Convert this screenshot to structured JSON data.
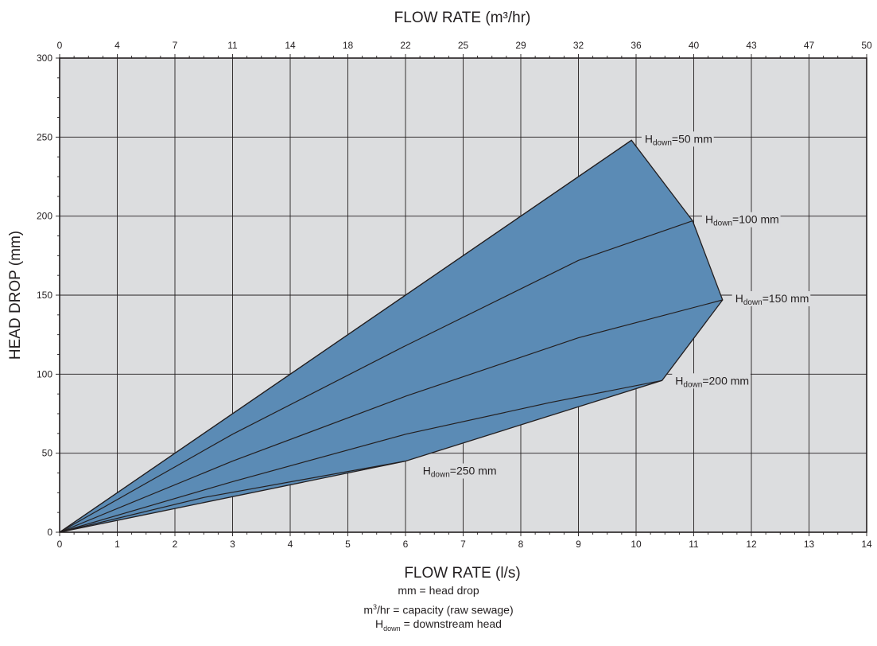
{
  "chart_data": {
    "type": "area",
    "title": "",
    "xlabel": "FLOW RATE (l/s)",
    "ylabel": "HEAD DROP (mm)",
    "top_xlabel": "FLOW RATE (m³/hr)",
    "xlim": [
      0,
      14
    ],
    "ylim": [
      0,
      300
    ],
    "x_ticks": [
      0,
      1,
      2,
      3,
      4,
      5,
      6,
      7,
      8,
      9,
      10,
      11,
      12,
      13,
      14
    ],
    "y_ticks": [
      0,
      50,
      100,
      150,
      200,
      250,
      300
    ],
    "top_x_ticks": [
      "0",
      "4",
      "7",
      "11",
      "14",
      "18",
      "22",
      "25",
      "29",
      "32",
      "36",
      "40",
      "43",
      "47",
      "50"
    ],
    "grid": true,
    "colors": {
      "fill": "#5b8bb5",
      "background": "#dcdddf",
      "line": "#231f20"
    },
    "envelope": [
      [
        0,
        0
      ],
      [
        9.92,
        248
      ],
      [
        10.98,
        197
      ],
      [
        11.5,
        147
      ],
      [
        10.45,
        96
      ],
      [
        6.0,
        45
      ],
      [
        0,
        0
      ]
    ],
    "series": [
      {
        "name": "Hdown=50 mm",
        "label_main": "H",
        "label_sub": "down",
        "label_rest": "=50 mm",
        "points": [
          [
            0,
            0
          ],
          [
            9.92,
            248
          ]
        ],
        "label_at": [
          10.15,
          249
        ]
      },
      {
        "name": "Hdown=100 mm",
        "label_main": "H",
        "label_sub": "down",
        "label_rest": "=100 mm",
        "points": [
          [
            0,
            0
          ],
          [
            3,
            62
          ],
          [
            6,
            118
          ],
          [
            9,
            172
          ],
          [
            10.98,
            197
          ]
        ],
        "label_at": [
          11.2,
          198
        ]
      },
      {
        "name": "Hdown=150 mm",
        "label_main": "H",
        "label_sub": "down",
        "label_rest": "=150 mm",
        "points": [
          [
            0,
            0
          ],
          [
            3,
            45
          ],
          [
            6,
            86
          ],
          [
            9,
            123
          ],
          [
            11.5,
            147
          ]
        ],
        "label_at": [
          11.72,
          148
        ]
      },
      {
        "name": "Hdown=200 mm",
        "label_main": "H",
        "label_sub": "down",
        "label_rest": "=200 mm",
        "points": [
          [
            0,
            0
          ],
          [
            3,
            32
          ],
          [
            6,
            62
          ],
          [
            8.5,
            82
          ],
          [
            10.45,
            96
          ]
        ],
        "label_at": [
          10.68,
          96
        ]
      },
      {
        "name": "Hdown=250 mm",
        "label_main": "H",
        "label_sub": "down",
        "label_rest": "=250 mm",
        "points": [
          [
            0,
            0
          ],
          [
            2.5,
            22
          ],
          [
            6.0,
            45
          ]
        ],
        "label_at": [
          6.3,
          39
        ]
      }
    ]
  },
  "legend": {
    "line1": "mm = head drop",
    "line2_main": "m",
    "line2_sup": "3",
    "line2_rest": "/hr = capacity (raw sewage)",
    "line3_main": "H",
    "line3_sub": "down",
    "line3_rest": " = downstream head"
  }
}
